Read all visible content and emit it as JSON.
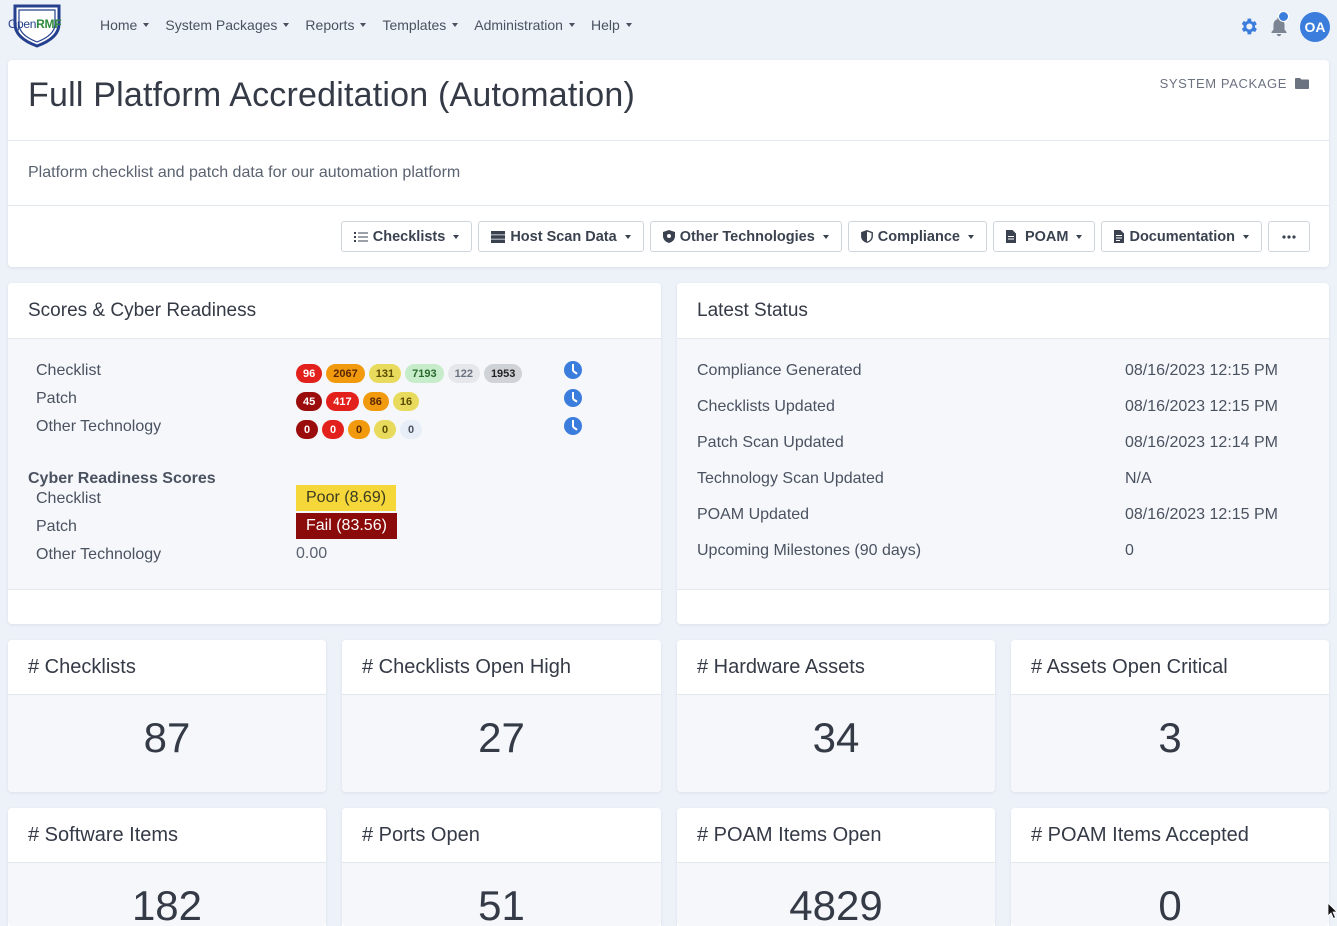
{
  "navbar": {
    "logo": {
      "prefix": "Open",
      "suffix": "RMF"
    },
    "menu": [
      {
        "label": "Home"
      },
      {
        "label": "System Packages"
      },
      {
        "label": "Reports"
      },
      {
        "label": "Templates"
      },
      {
        "label": "Administration"
      },
      {
        "label": "Help"
      }
    ],
    "avatar_initials": "OA",
    "accent_color": "#3b7ddd"
  },
  "header": {
    "title": "Full Platform Accreditation (Automation)",
    "package_label": "SYSTEM PACKAGE",
    "description": "Platform checklist and patch data for our automation platform",
    "toolbar": [
      {
        "label": "Checklists",
        "icon": "list-check-icon"
      },
      {
        "label": "Host Scan Data",
        "icon": "server-icon"
      },
      {
        "label": "Other Technologies",
        "icon": "shield-icon"
      },
      {
        "label": "Compliance",
        "icon": "shield-half-icon"
      },
      {
        "label": "POAM",
        "icon": "file-icon"
      },
      {
        "label": "Documentation",
        "icon": "document-icon"
      }
    ]
  },
  "scores": {
    "title": "Scores & Cyber Readiness",
    "rows": [
      {
        "label": "Checklist",
        "pills": [
          {
            "value": "96",
            "bg": "#e3211c",
            "fg": "#ffffff"
          },
          {
            "value": "2067",
            "bg": "#f29a0e",
            "fg": "#5a2600"
          },
          {
            "value": "131",
            "bg": "#e8da5c",
            "fg": "#5a4a00"
          },
          {
            "value": "7193",
            "bg": "#c7ecc9",
            "fg": "#2a6a2e"
          },
          {
            "value": "122",
            "bg": "#e5e7eb",
            "fg": "#6b7280"
          },
          {
            "value": "1953",
            "bg": "#cfd3d8",
            "fg": "#222222"
          }
        ]
      },
      {
        "label": "Patch",
        "pills": [
          {
            "value": "45",
            "bg": "#9b0d0d",
            "fg": "#ffffff"
          },
          {
            "value": "417",
            "bg": "#e3211c",
            "fg": "#ffffff"
          },
          {
            "value": "86",
            "bg": "#f29a0e",
            "fg": "#5a2600"
          },
          {
            "value": "16",
            "bg": "#e8da5c",
            "fg": "#5a4a00"
          }
        ]
      },
      {
        "label": "Other Technology",
        "pills": [
          {
            "value": "0",
            "bg": "#9b0d0d",
            "fg": "#ffffff"
          },
          {
            "value": "0",
            "bg": "#e3211c",
            "fg": "#ffffff"
          },
          {
            "value": "0",
            "bg": "#f29a0e",
            "fg": "#5a2600"
          },
          {
            "value": "0",
            "bg": "#e8da5c",
            "fg": "#5a4a00"
          },
          {
            "value": "0",
            "bg": "#e8eef8",
            "fg": "#4a5260"
          }
        ]
      }
    ],
    "cyber_title": "Cyber Readiness Scores",
    "cyber": [
      {
        "label": "Checklist",
        "value": "Poor (8.69)",
        "bg": "#f5d73a",
        "fg": "#3a3a20"
      },
      {
        "label": "Patch",
        "value": "Fail (83.56)",
        "bg": "#8b0b0b",
        "fg": "#ffffff"
      },
      {
        "label": "Other Technology",
        "value": "0.00",
        "bg": "",
        "fg": "#5a6270"
      }
    ]
  },
  "status": {
    "title": "Latest Status",
    "rows": [
      {
        "label": "Compliance Generated",
        "value": "08/16/2023 12:15 PM"
      },
      {
        "label": "Checklists Updated",
        "value": "08/16/2023 12:15 PM"
      },
      {
        "label": "Patch Scan Updated",
        "value": "08/16/2023 12:14 PM"
      },
      {
        "label": "Technology Scan Updated",
        "value": "N/A"
      },
      {
        "label": "POAM Updated",
        "value": "08/16/2023 12:15 PM"
      },
      {
        "label": "Upcoming Milestones (90 days)",
        "value": "0"
      }
    ]
  },
  "stats": [
    {
      "label": "# Checklists",
      "value": "87"
    },
    {
      "label": "# Checklists Open High",
      "value": "27"
    },
    {
      "label": "# Hardware Assets",
      "value": "34"
    },
    {
      "label": "# Assets Open Critical",
      "value": "3"
    },
    {
      "label": "# Software Items",
      "value": "182"
    },
    {
      "label": "# Ports Open",
      "value": "51"
    },
    {
      "label": "# POAM Items Open",
      "value": "4829"
    },
    {
      "label": "# POAM Items Accepted",
      "value": "0"
    }
  ]
}
